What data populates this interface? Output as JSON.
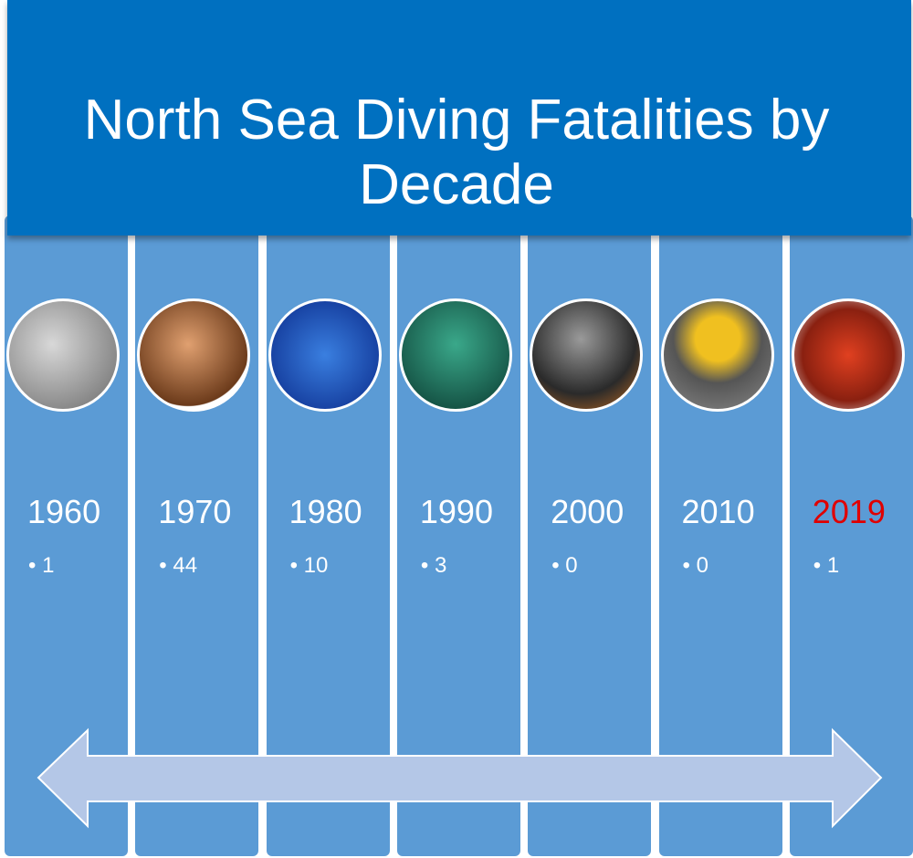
{
  "title": "North Sea Diving Fatalities by Decade",
  "columns": [
    {
      "label": "1960",
      "value": 1
    },
    {
      "label": "1970",
      "value": 44
    },
    {
      "label": "1980",
      "value": 10
    },
    {
      "label": "1990",
      "value": 3
    },
    {
      "label": "2000",
      "value": 0
    },
    {
      "label": "2010",
      "value": 0
    },
    {
      "label": "2019",
      "value": 1,
      "color": "#e00000"
    }
  ]
}
